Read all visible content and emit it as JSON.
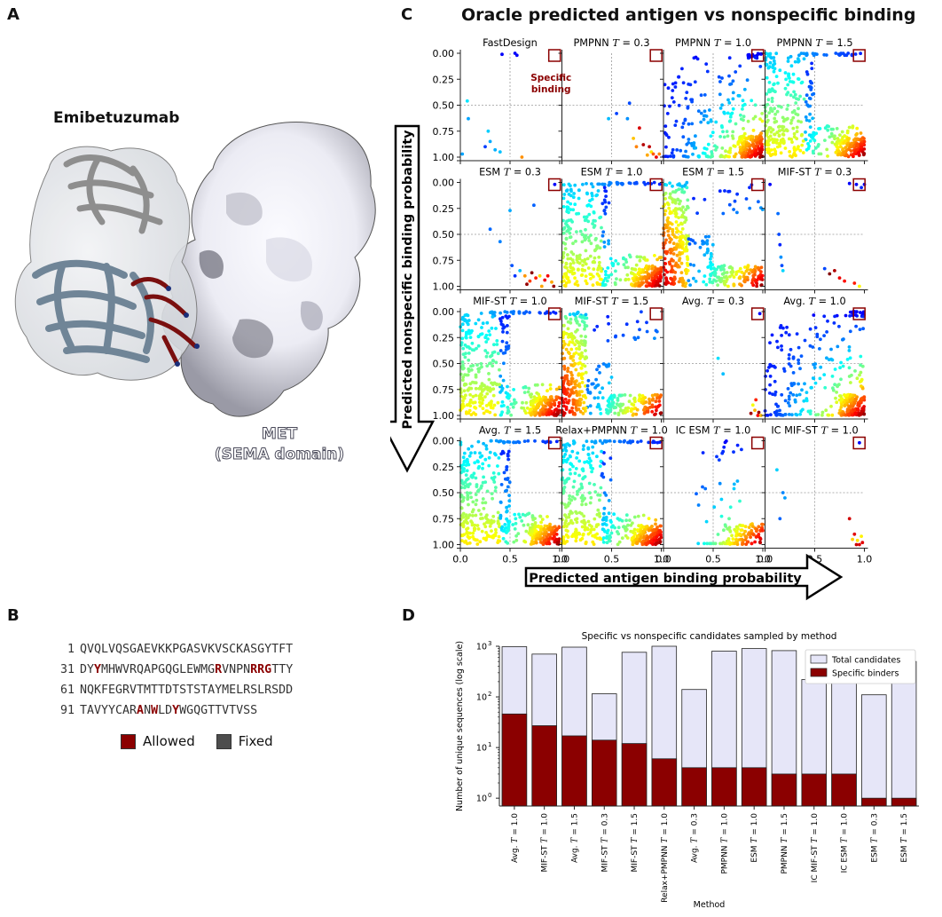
{
  "panels": {
    "a": "A",
    "b": "B",
    "c": "C",
    "d": "D"
  },
  "panel_a": {
    "antibody_label": "Emibetuzumab",
    "antigen_label_line1": "MET",
    "antigen_label_line2": "(SEMA domain)"
  },
  "panel_b": {
    "rows": [
      {
        "num": "1",
        "segments": [
          {
            "t": "QVQLVQSGAEVKKPGASVKVSCKASGYTFT",
            "hl": false
          }
        ]
      },
      {
        "num": "31",
        "segments": [
          {
            "t": "DY",
            "hl": false
          },
          {
            "t": "Y",
            "hl": true
          },
          {
            "t": "MHWVRQAPGQGLEWMG",
            "hl": false
          },
          {
            "t": "R",
            "hl": true
          },
          {
            "t": "VNPN",
            "hl": false
          },
          {
            "t": "RRG",
            "hl": true
          },
          {
            "t": "TTY",
            "hl": false
          }
        ]
      },
      {
        "num": "61",
        "segments": [
          {
            "t": "NQKFEGRVTMTTDTSTSTAYMELRSLRSDD",
            "hl": false
          }
        ]
      },
      {
        "num": "91",
        "segments": [
          {
            "t": "TAVYYCAR",
            "hl": false
          },
          {
            "t": "A",
            "hl": true
          },
          {
            "t": "N",
            "hl": false
          },
          {
            "t": "W",
            "hl": true
          },
          {
            "t": "LD",
            "hl": false
          },
          {
            "t": "Y",
            "hl": true
          },
          {
            "t": "WGQGTTVTVSS",
            "hl": false
          }
        ]
      }
    ],
    "legend_allowed": "Allowed",
    "legend_fixed": "Fixed",
    "allowed_color": "#8b0000",
    "fixed_color": "#4d4d4d"
  },
  "chart_data": [
    {
      "type": "scatter",
      "title": "Oracle predicted antigen vs nonspecific binding",
      "xlabel": "Predicted antigen binding probability",
      "ylabel": "Predicted nonspecific binding probability",
      "xlim": [
        0,
        1
      ],
      "ylim": [
        1,
        0
      ],
      "xticks": [
        "0.0",
        "0.5",
        "1.0"
      ],
      "yticks": [
        "0.00",
        "0.25",
        "0.50",
        "0.75",
        "1.00"
      ],
      "annotation": "Specific binding",
      "subplots": [
        {
          "title_pre": "FastDesign",
          "t": "",
          "density": "sparse",
          "points": [
            [
              0.42,
              0.01
            ],
            [
              0.55,
              0.0
            ],
            [
              0.57,
              0.02
            ],
            [
              0.07,
              0.46
            ],
            [
              0.08,
              0.63
            ],
            [
              0.02,
              0.97
            ],
            [
              0.25,
              0.9
            ],
            [
              0.28,
              0.75
            ],
            [
              0.3,
              0.85
            ],
            [
              0.4,
              0.95
            ],
            [
              0.35,
              0.93
            ],
            [
              0.62,
              1.0
            ]
          ]
        },
        {
          "title_pre": "PMPNN ",
          "t": "0.3",
          "density": "sparse",
          "points": [
            [
              0.47,
              0.63
            ],
            [
              0.55,
              0.58
            ],
            [
              0.66,
              0.63
            ],
            [
              0.68,
              0.48
            ],
            [
              0.72,
              0.82
            ],
            [
              0.78,
              0.72
            ],
            [
              0.82,
              0.88
            ],
            [
              0.88,
              0.9
            ],
            [
              0.9,
              0.95
            ],
            [
              0.92,
              0.97
            ],
            [
              0.95,
              1.0
            ],
            [
              0.98,
              0.97
            ],
            [
              0.86,
              0.98
            ],
            [
              0.75,
              0.9
            ]
          ]
        },
        {
          "title_pre": "PMPNN ",
          "t": "1.0",
          "density": "dense"
        },
        {
          "title_pre": "PMPNN ",
          "t": "1.5",
          "density": "dense_left"
        },
        {
          "title_pre": "ESM ",
          "t": "0.3",
          "density": "sparse",
          "points": [
            [
              0.95,
              0.02
            ],
            [
              0.3,
              0.45
            ],
            [
              0.4,
              0.57
            ],
            [
              0.5,
              0.27
            ],
            [
              0.52,
              0.8
            ],
            [
              0.55,
              0.9
            ],
            [
              0.6,
              0.85
            ],
            [
              0.65,
              0.9
            ],
            [
              0.72,
              0.87
            ],
            [
              0.76,
              0.92
            ],
            [
              0.8,
              0.9
            ],
            [
              0.85,
              0.94
            ],
            [
              0.88,
              0.9
            ],
            [
              0.92,
              0.96
            ],
            [
              0.94,
              1.0
            ],
            [
              0.7,
              0.95
            ],
            [
              0.82,
              1.0
            ],
            [
              0.67,
              0.98
            ],
            [
              0.74,
              0.22
            ]
          ]
        },
        {
          "title_pre": "ESM ",
          "t": "1.0",
          "density": "dense_left"
        },
        {
          "title_pre": "ESM ",
          "t": "1.5",
          "density": "left_band"
        },
        {
          "title_pre": "MIF-ST ",
          "t": "0.3",
          "density": "sparse",
          "points": [
            [
              0.05,
              0.02
            ],
            [
              0.13,
              0.3
            ],
            [
              0.14,
              0.5
            ],
            [
              0.15,
              0.6
            ],
            [
              0.16,
              0.72
            ],
            [
              0.17,
              0.8
            ],
            [
              0.18,
              0.85
            ],
            [
              0.6,
              0.83
            ],
            [
              0.65,
              0.88
            ],
            [
              0.7,
              0.85
            ],
            [
              0.75,
              0.92
            ],
            [
              0.8,
              0.95
            ],
            [
              0.9,
              0.97
            ],
            [
              0.95,
              1.0
            ],
            [
              0.92,
              0.02
            ],
            [
              0.97,
              0.05
            ],
            [
              0.85,
              0.01
            ],
            [
              1.0,
              0.02
            ]
          ]
        },
        {
          "title_pre": "MIF-ST ",
          "t": "1.0",
          "density": "dense_left"
        },
        {
          "title_pre": "MIF-ST ",
          "t": "1.5",
          "density": "left_band"
        },
        {
          "title_pre": "Avg. ",
          "t": "0.3",
          "density": "sparse",
          "points": [
            [
              0.97,
              0.02
            ],
            [
              0.55,
              0.45
            ],
            [
              0.6,
              0.6
            ],
            [
              0.9,
              0.9
            ],
            [
              0.92,
              0.95
            ],
            [
              0.95,
              1.0
            ],
            [
              0.88,
              0.98
            ],
            [
              0.96,
              0.97
            ],
            [
              0.93,
              0.85
            ],
            [
              0.98,
              1.0
            ]
          ]
        },
        {
          "title_pre": "Avg. ",
          "t": "1.0",
          "density": "dense"
        },
        {
          "title_pre": "Avg. ",
          "t": "1.5",
          "density": "dense_left"
        },
        {
          "title_pre": "Relax+PMPNN ",
          "t": "1.0",
          "density": "dense_left"
        },
        {
          "title_pre": "IC ESM ",
          "t": "1.0",
          "density": "medium"
        },
        {
          "title_pre": "IC MIF-ST ",
          "t": "1.0",
          "density": "sparse",
          "points": [
            [
              0.95,
              0.02
            ],
            [
              0.12,
              0.28
            ],
            [
              0.18,
              0.5
            ],
            [
              0.2,
              0.55
            ],
            [
              0.15,
              0.75
            ],
            [
              0.85,
              0.75
            ],
            [
              0.9,
              0.9
            ],
            [
              0.93,
              0.96
            ],
            [
              0.95,
              1.0
            ],
            [
              0.98,
              0.98
            ],
            [
              0.92,
              1.0
            ],
            [
              0.88,
              0.95
            ],
            [
              0.97,
              0.92
            ]
          ]
        }
      ]
    },
    {
      "type": "bar",
      "title": "Specific vs nonspecific candidates sampled by method",
      "xlabel": "Method",
      "ylabel": "Number of unique sequences (log scale)",
      "yscale": "log",
      "ylim": [
        0.7,
        1000
      ],
      "yticks": [
        "10",
        "10",
        "10",
        "10"
      ],
      "yticks_exp": [
        "0",
        "1",
        "2",
        "3"
      ],
      "categories": [
        "Avg. T = 1.0",
        "MIF-ST T = 1.0",
        "Avg. T = 1.5",
        "MIF-ST T = 0.3",
        "MIF-ST T = 1.5",
        "Relax+PMPNN T = 1.0",
        "Avg. T = 0.3",
        "PMPNN T = 1.0",
        "ESM T = 1.0",
        "PMPNN T = 1.5",
        "IC MIF-ST T = 1.0",
        "IC ESM T = 1.0",
        "ESM T = 0.3",
        "ESM T = 1.5"
      ],
      "series": [
        {
          "name": "Total candidates",
          "color": "#e6e6f8",
          "values": [
            980,
            700,
            960,
            115,
            760,
            1000,
            140,
            800,
            900,
            820,
            220,
            500,
            110,
            500
          ]
        },
        {
          "name": "Specific binders",
          "color": "#8b0000",
          "values": [
            46,
            27,
            17,
            14,
            12,
            6,
            4,
            4,
            4,
            3,
            3,
            3,
            1,
            1
          ]
        }
      ],
      "legend": "top-right"
    }
  ]
}
